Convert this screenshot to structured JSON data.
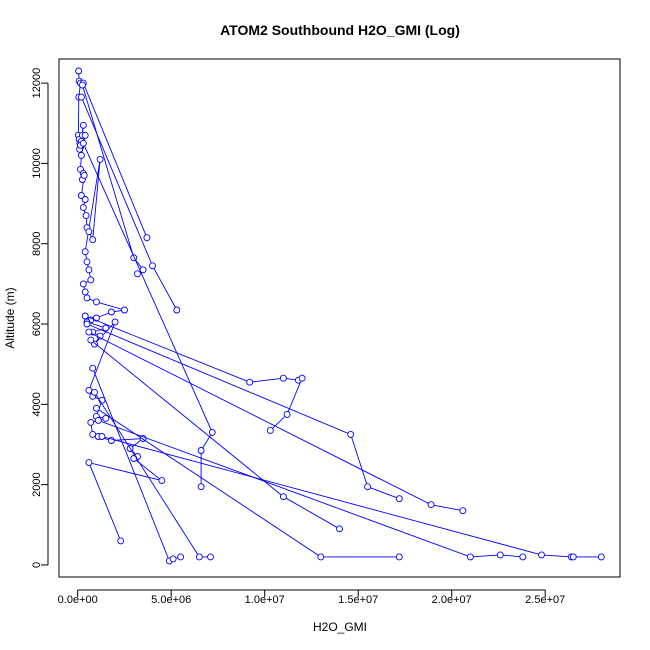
{
  "chart_data": {
    "type": "line",
    "title": "ATOM2 Southbound H2O_GMI (Log)",
    "xlabel": "H2O_GMI",
    "ylabel": "Altitude (m)",
    "xlim": [
      -1000000,
      29000000
    ],
    "ylim": [
      -300,
      12600
    ],
    "x_ticks": [
      0,
      5000000,
      10000000,
      15000000,
      20000000,
      25000000
    ],
    "x_tick_labels": [
      "0.0e+00",
      "5.0e+06",
      "1.0e+07",
      "1.5e+07",
      "2.0e+07",
      "2.5e+07"
    ],
    "y_ticks": [
      0,
      2000,
      4000,
      6000,
      8000,
      10000,
      12000
    ],
    "y_tick_labels": [
      "0",
      "2000",
      "4000",
      "6000",
      "8000",
      "10000",
      "12000"
    ],
    "grid": false,
    "marker": "open-circle",
    "series": [
      {
        "x": [
          50000,
          80000,
          150000,
          60000,
          40000,
          80000,
          120000,
          150000,
          100000,
          200000,
          150000,
          300000,
          250000,
          400000,
          200000,
          150000,
          300000,
          250000,
          350000,
          200000,
          400000,
          300000,
          450000,
          500000,
          600000,
          800000,
          1200000,
          400000,
          500000,
          600000,
          700000,
          300000,
          400000,
          500000,
          1000000,
          2500000,
          1800000,
          1000000,
          700000,
          500000,
          1500000,
          800000,
          1200000,
          900000,
          2000000,
          600000,
          800000,
          1300000,
          1000000,
          1500000,
          700000,
          800000,
          1100000,
          1800000,
          3500000,
          2800000,
          3200000,
          3000000,
          4500000,
          600000,
          2300000
        ],
        "y": [
          12300,
          12050,
          12000,
          11650,
          10700,
          10600,
          10500,
          10400,
          10350,
          10550,
          10450,
          10950,
          10700,
          10700,
          10200,
          9850,
          9750,
          9600,
          9700,
          9200,
          9100,
          8900,
          8700,
          8400,
          8300,
          8100,
          10100,
          7800,
          7550,
          7350,
          7100,
          7000,
          6800,
          6650,
          6550,
          6350,
          6300,
          6150,
          6100,
          6050,
          5900,
          5800,
          5700,
          5500,
          6050,
          4350,
          4200,
          4100,
          3700,
          3650,
          3550,
          3250,
          3200,
          3100,
          3150,
          2900,
          2700,
          2650,
          2100,
          2550,
          600
        ]
      },
      {
        "x": [
          300000,
          3700000
        ],
        "y": [
          12000,
          8150
        ]
      },
      {
        "x": [
          200000,
          4000000,
          5300000
        ],
        "y": [
          11650,
          7450,
          6350
        ]
      },
      {
        "x": [
          250000,
          3000000,
          3500000,
          3200000
        ],
        "y": [
          11950,
          7650,
          7350,
          7250
        ]
      },
      {
        "x": [
          400000,
          9200000,
          11000000,
          11800000,
          12000000,
          11200000,
          10300000
        ],
        "y": [
          6200,
          4550,
          4650,
          4600,
          4650,
          3750,
          3350
        ]
      },
      {
        "x": [
          300000,
          7200000,
          6600000,
          6600000
        ],
        "y": [
          10500,
          3300,
          2850,
          1950
        ]
      },
      {
        "x": [
          500000,
          14600000,
          15500000,
          17200000
        ],
        "y": [
          6000,
          3250,
          1950,
          1650
        ]
      },
      {
        "x": [
          600000,
          18900000,
          20600000
        ],
        "y": [
          5800,
          1500,
          1350
        ]
      },
      {
        "x": [
          700000,
          11000000,
          14000000
        ],
        "y": [
          5600,
          1700,
          900
        ]
      },
      {
        "x": [
          800000,
          4900000,
          5100000,
          5500000
        ],
        "y": [
          4900,
          100,
          150,
          200
        ]
      },
      {
        "x": [
          900000,
          6500000,
          7100000
        ],
        "y": [
          4300,
          200,
          200
        ]
      },
      {
        "x": [
          1000000,
          13000000,
          17200000
        ],
        "y": [
          3900,
          200,
          200
        ]
      },
      {
        "x": [
          1100000,
          21000000,
          22600000,
          23800000
        ],
        "y": [
          3600,
          200,
          250,
          200
        ]
      },
      {
        "x": [
          1300000,
          24800000,
          26400000,
          26500000,
          28000000
        ],
        "y": [
          3200,
          250,
          200,
          200,
          200
        ]
      }
    ],
    "color": "#0000ff"
  }
}
